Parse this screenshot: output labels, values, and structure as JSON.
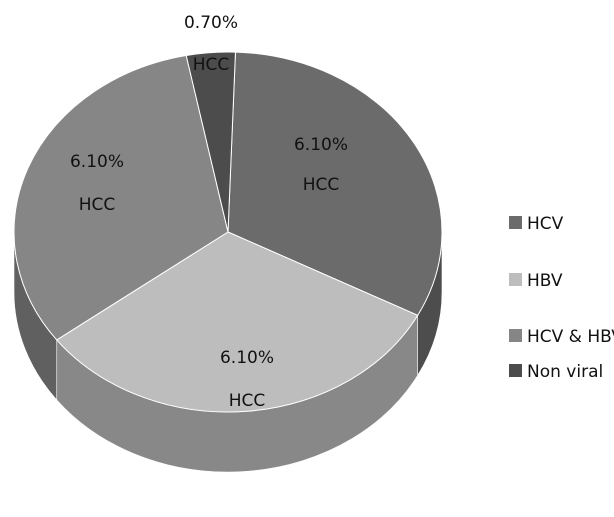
{
  "chart_data": {
    "type": "pie",
    "style": "3d",
    "categories": [
      "HCV",
      "HBV",
      "HCV & HBV",
      "Non viral"
    ],
    "values": [
      6.1,
      6.1,
      6.1,
      0.7
    ],
    "slice_labels": [
      {
        "value_text": "6.10%",
        "text": "HCC"
      },
      {
        "value_text": "6.10%",
        "text": "HCC"
      },
      {
        "value_text": "6.10%",
        "text": "HCC"
      },
      {
        "value_text": "0.70%",
        "text": "HCC"
      }
    ],
    "colors": {
      "HCV": "#6b6b6b",
      "HBV": "#bdbdbd",
      "HCV & HBV": "#868686",
      "Non viral": "#4c4c4c"
    },
    "legend": {
      "position": "right",
      "items": [
        "HCV",
        "HBV",
        "HCV & HBV",
        "Non viral"
      ]
    }
  }
}
